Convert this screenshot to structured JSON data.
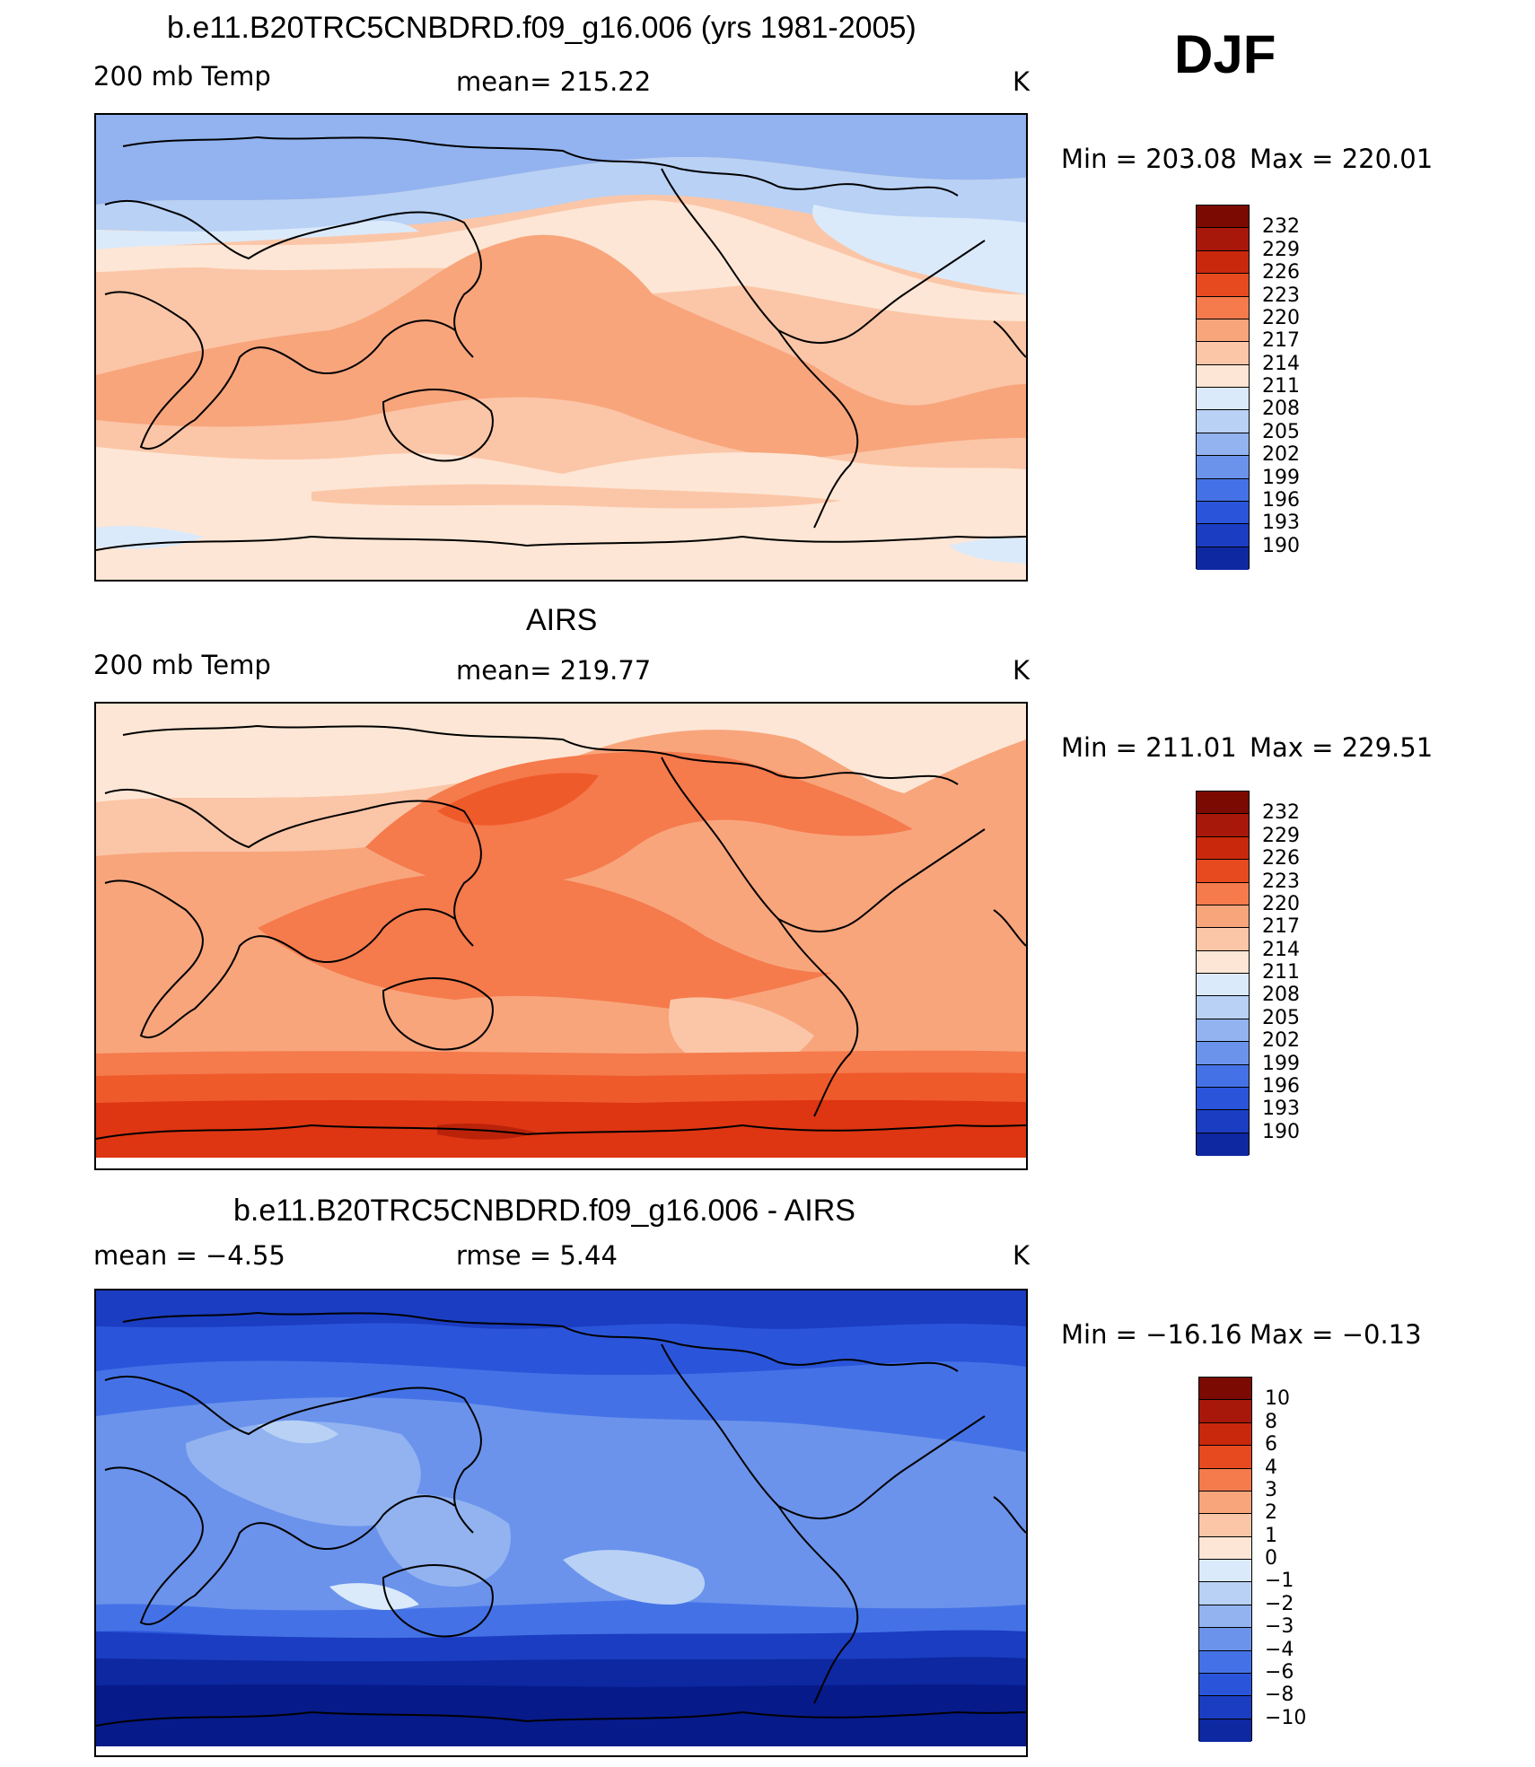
{
  "season": "DJF",
  "colors": {
    "warm": [
      "#fde6d5",
      "#fbc6a7",
      "#f8a57c",
      "#f57a4c",
      "#ef5a2b",
      "#de3512",
      "#ba220a",
      "#8f1004"
    ],
    "cool": [
      "#dbeafa",
      "#b8d1f5",
      "#92b3f0",
      "#6b93ec",
      "#4472e6",
      "#2a55da",
      "#1b3dc2",
      "#0d28a0",
      "#061a8a"
    ],
    "diff": [
      "#fde6d5",
      "#fbc6a7",
      "#f8a57c",
      "#f57a4c",
      "#ef5a2b",
      "#de3512",
      "#ba220a",
      "#8f1004",
      "#dbeafa",
      "#b8d1f5",
      "#92b3f0",
      "#6b93ec",
      "#4472e6",
      "#2a55da",
      "#1b3dc2",
      "#0d28a0",
      "#061a8a"
    ]
  },
  "chart_data": [
    {
      "type": "heatmap",
      "title": "b.e11.B20TRC5CNBDRD.f09_g16.006 (yrs 1981-2005)",
      "left_label": "200 mb Temp",
      "center_label": "mean=  215.22",
      "units": "K",
      "min_label": "Min  =  203.08",
      "max_label": "Max  =  220.01",
      "mean": 215.22,
      "min": 203.08,
      "max": 220.01,
      "colorbar_levels": [
        "232",
        "229",
        "226",
        "223",
        "220",
        "217",
        "214",
        "211",
        "208",
        "205",
        "202",
        "199",
        "196",
        "193",
        "190"
      ]
    },
    {
      "type": "heatmap",
      "title": "AIRS",
      "left_label": "200 mb Temp",
      "center_label": "mean=  219.77",
      "units": "K",
      "min_label": "Min  =  211.01",
      "max_label": "Max  =  229.51",
      "mean": 219.77,
      "min": 211.01,
      "max": 229.51,
      "colorbar_levels": [
        "232",
        "229",
        "226",
        "223",
        "220",
        "217",
        "214",
        "211",
        "208",
        "205",
        "202",
        "199",
        "196",
        "193",
        "190"
      ]
    },
    {
      "type": "heatmap",
      "title": "b.e11.B20TRC5CNBDRD.f09_g16.006 - AIRS",
      "left_label": "mean  =    −4.55",
      "center_label": "rmse  =     5.44",
      "units": "K",
      "min_label": "Min  =  −16.16",
      "max_label": "Max  =    −0.13",
      "mean": -4.55,
      "rmse": 5.44,
      "min": -16.16,
      "max": -0.13,
      "colorbar_levels": [
        "10",
        "8",
        "6",
        "4",
        "3",
        "2",
        "1",
        "0",
        "−1",
        "−2",
        "−3",
        "−4",
        "−6",
        "−8",
        "−10"
      ]
    }
  ]
}
